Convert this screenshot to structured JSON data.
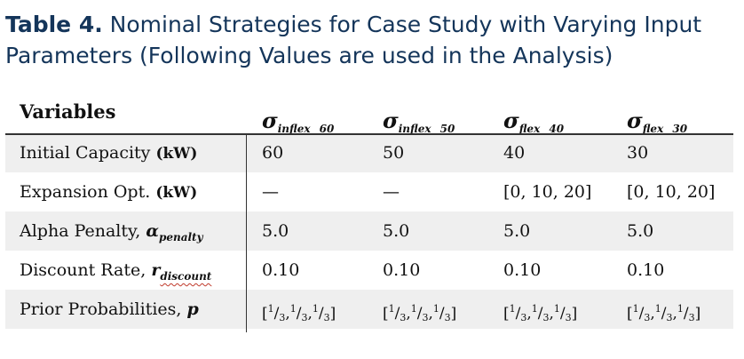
{
  "caption": {
    "label": "Table 4.",
    "text": " Nominal Strategies for Case Study with Varying Input Parameters (Following Values are used in the Analysis)"
  },
  "table": {
    "header": {
      "variables": "Variables",
      "columns": [
        {
          "symbol": "σ",
          "subscript": "inflex_ 60"
        },
        {
          "symbol": "σ",
          "subscript": "inflex_ 50"
        },
        {
          "symbol": "σ",
          "subscript": "flex_ 40"
        },
        {
          "symbol": "σ",
          "subscript": "flex_ 30"
        }
      ]
    },
    "rows": [
      {
        "label": "Initial Capacity ",
        "unit": "(kW)",
        "values": [
          "60",
          "50",
          "40",
          "30"
        ]
      },
      {
        "label": "Expansion Opt. ",
        "unit": "(kW)",
        "values": [
          "—",
          "—",
          "[0, 10, 20]",
          "[0, 10, 20]"
        ]
      },
      {
        "label": "Alpha Penalty, ",
        "symbol": "α",
        "subscript": "penalty",
        "values": [
          "5.0",
          "5.0",
          "5.0",
          "5.0"
        ]
      },
      {
        "label": "Discount Rate, ",
        "symbol": "r",
        "subscript": "discount",
        "values": [
          "0.10",
          "0.10",
          "0.10",
          "0.10"
        ]
      },
      {
        "label": "Prior Probabilities, ",
        "symbol": "p",
        "values": [
          "[1/3, 1/3, 1/3]",
          "[1/3, 1/3, 1/3]",
          "[1/3, 1/3, 1/3]",
          "[1/3, 1/3, 1/3]"
        ]
      }
    ],
    "fraction_text": {
      "num": "1",
      "slash": "/",
      "den": "3"
    }
  }
}
